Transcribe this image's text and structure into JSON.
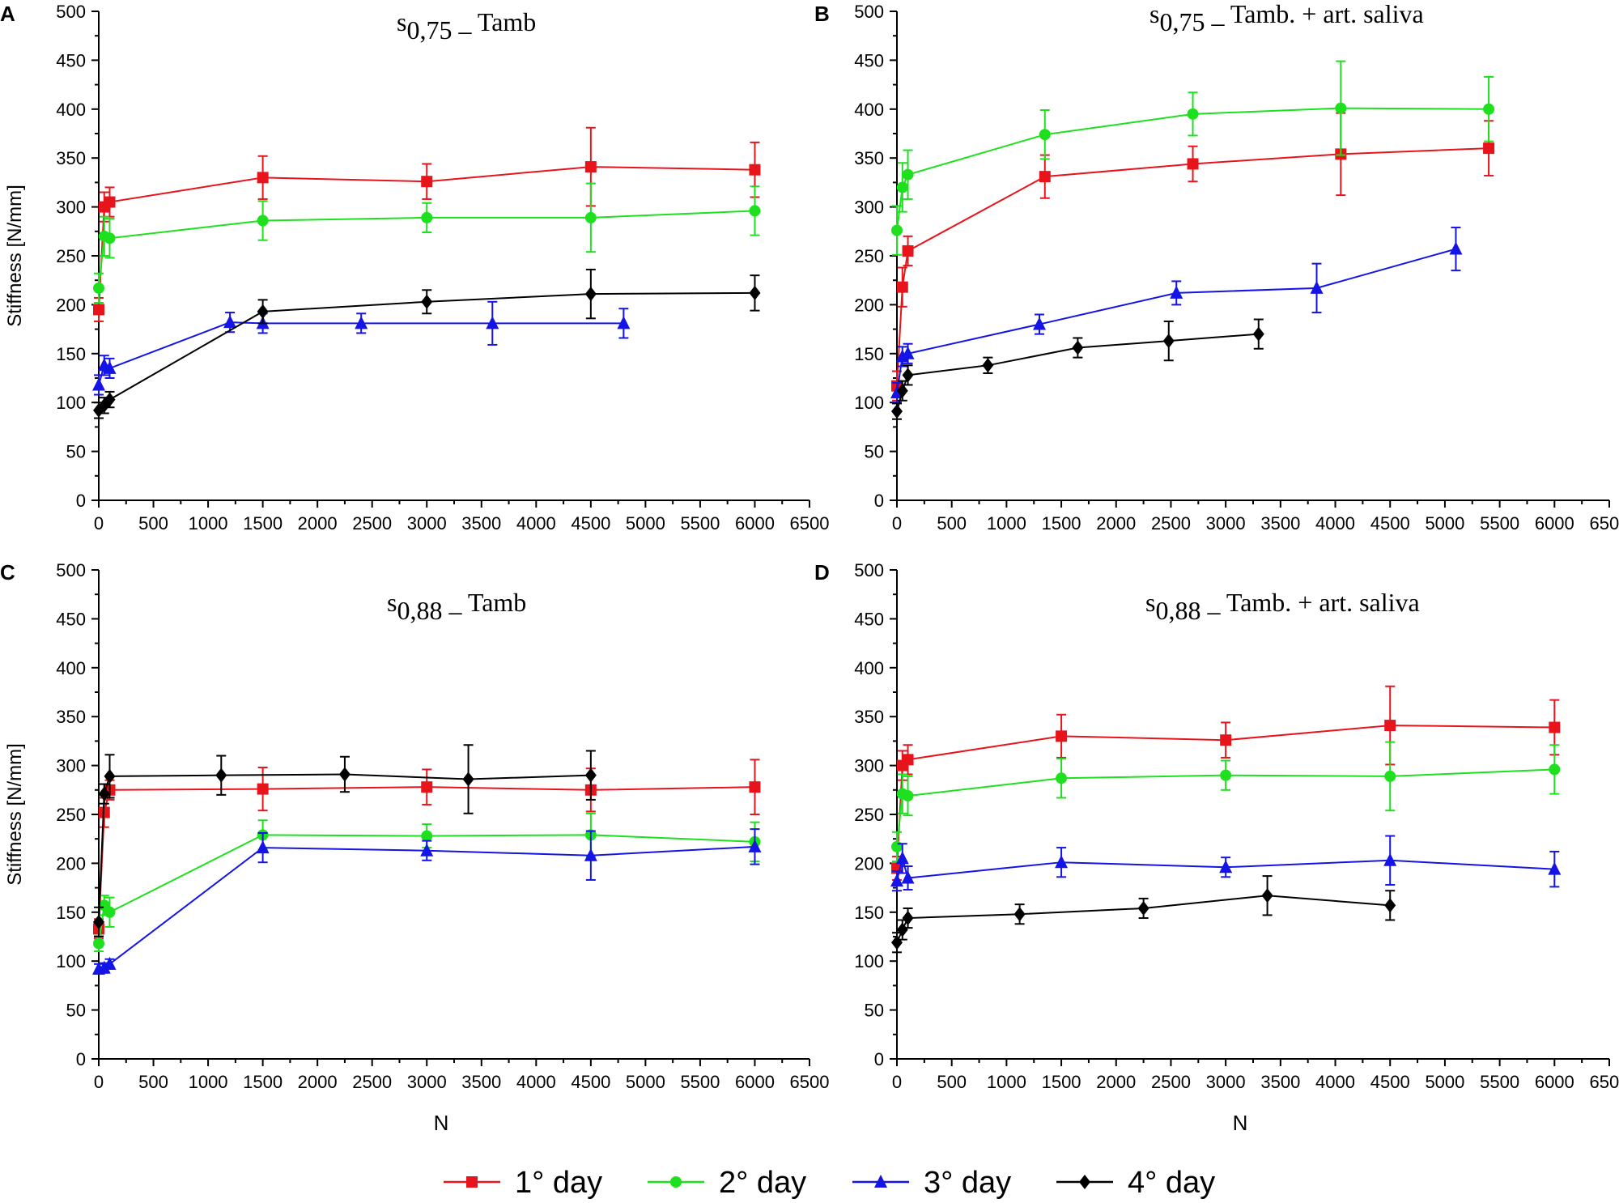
{
  "legend": {
    "entries": [
      {
        "key": "day1",
        "label": "1° day",
        "color": "#e8141c",
        "marker": "square"
      },
      {
        "key": "day2",
        "label": "2° day",
        "color": "#1ee01e",
        "marker": "circle"
      },
      {
        "key": "day3",
        "label": "3° day",
        "color": "#1414e6",
        "marker": "triangle"
      },
      {
        "key": "day4",
        "label": "4° day",
        "color": "#000000",
        "marker": "diamond"
      }
    ]
  },
  "chart_data": [
    {
      "type": "line",
      "panel": "A",
      "title": {
        "main": "s",
        "sub": "0,75",
        "rest": " _ Tamb"
      },
      "xlabel": "",
      "ylabel": "Stiffness [N/mm]",
      "xlim": [
        0,
        6500
      ],
      "ylim": [
        0,
        500
      ],
      "xticks": [
        0,
        500,
        1000,
        1500,
        2000,
        2500,
        3000,
        3500,
        4000,
        4500,
        5000,
        5500,
        6000,
        6500
      ],
      "yticks": [
        0,
        50,
        100,
        150,
        200,
        250,
        300,
        350,
        400,
        450,
        500
      ],
      "series": [
        {
          "name": "1° day",
          "x": [
            0,
            50,
            100,
            1500,
            3000,
            4500,
            6000
          ],
          "y": [
            195,
            300,
            305,
            330,
            326,
            341,
            338
          ],
          "err": [
            12,
            15,
            15,
            22,
            18,
            40,
            28
          ]
        },
        {
          "name": "2° day",
          "x": [
            0,
            50,
            100,
            1500,
            3000,
            4500,
            6000
          ],
          "y": [
            217,
            270,
            268,
            286,
            289,
            289,
            296
          ],
          "err": [
            15,
            20,
            20,
            20,
            15,
            35,
            25
          ]
        },
        {
          "name": "3° day",
          "x": [
            0,
            50,
            100,
            1200,
            1500,
            2400,
            3600,
            4800
          ],
          "y": [
            118,
            138,
            135,
            182,
            181,
            181,
            181,
            181
          ],
          "err": [
            10,
            10,
            10,
            10,
            10,
            10,
            22,
            15
          ]
        },
        {
          "name": "4° day",
          "x": [
            0,
            50,
            100,
            1500,
            3000,
            4500,
            6000
          ],
          "y": [
            92,
            97,
            103,
            193,
            203,
            211,
            212
          ],
          "err": [
            8,
            8,
            8,
            12,
            12,
            25,
            18
          ]
        }
      ]
    },
    {
      "type": "line",
      "panel": "B",
      "title": {
        "main": "s",
        "sub": "0,75",
        "rest": " _ Tamb. + art. saliva"
      },
      "xlabel": "",
      "ylabel": "",
      "xlim": [
        0,
        6500
      ],
      "ylim": [
        0,
        500
      ],
      "xticks": [
        0,
        500,
        1000,
        1500,
        2000,
        2500,
        3000,
        3500,
        4000,
        4500,
        5000,
        5500,
        6000,
        6500
      ],
      "yticks": [
        0,
        50,
        100,
        150,
        200,
        250,
        300,
        350,
        400,
        450,
        500
      ],
      "series": [
        {
          "name": "1° day",
          "x": [
            0,
            50,
            100,
            1350,
            2700,
            4050,
            5400
          ],
          "y": [
            117,
            218,
            255,
            331,
            344,
            354,
            360
          ],
          "err": [
            15,
            20,
            15,
            22,
            18,
            42,
            28
          ]
        },
        {
          "name": "2° day",
          "x": [
            0,
            50,
            100,
            1350,
            2700,
            4050,
            5400
          ],
          "y": [
            276,
            320,
            333,
            374,
            395,
            401,
            400
          ],
          "err": [
            25,
            25,
            25,
            25,
            22,
            48,
            33
          ]
        },
        {
          "name": "3° day",
          "x": [
            0,
            50,
            100,
            1300,
            2550,
            3830,
            5100
          ],
          "y": [
            110,
            147,
            150,
            180,
            212,
            217,
            257
          ],
          "err": [
            10,
            10,
            10,
            10,
            12,
            25,
            22
          ]
        },
        {
          "name": "4° day",
          "x": [
            0,
            50,
            100,
            830,
            1650,
            2480,
            3300
          ],
          "y": [
            91,
            112,
            128,
            138,
            156,
            163,
            170
          ],
          "err": [
            8,
            10,
            10,
            8,
            10,
            20,
            15
          ]
        }
      ]
    },
    {
      "type": "line",
      "panel": "C",
      "title": {
        "main": "s",
        "sub": "0,88",
        "rest": " _ Tamb"
      },
      "xlabel": "N",
      "ylabel": "Stiffness [N/mm]",
      "xlim": [
        0,
        6500
      ],
      "ylim": [
        0,
        500
      ],
      "xticks": [
        0,
        500,
        1000,
        1500,
        2000,
        2500,
        3000,
        3500,
        4000,
        4500,
        5000,
        5500,
        6000,
        6500
      ],
      "yticks": [
        0,
        50,
        100,
        150,
        200,
        250,
        300,
        350,
        400,
        450,
        500
      ],
      "series": [
        {
          "name": "1° day",
          "x": [
            0,
            50,
            100,
            1500,
            3000,
            4500,
            6000
          ],
          "y": [
            133,
            252,
            275,
            276,
            278,
            275,
            278
          ],
          "err": [
            10,
            15,
            10,
            22,
            18,
            22,
            28
          ]
        },
        {
          "name": "2° day",
          "x": [
            0,
            50,
            100,
            1500,
            3000,
            4500,
            6000
          ],
          "y": [
            118,
            157,
            150,
            229,
            228,
            229,
            222
          ],
          "err": [
            8,
            10,
            15,
            15,
            12,
            22,
            20
          ]
        },
        {
          "name": "3° day",
          "x": [
            0,
            50,
            100,
            1500,
            3000,
            4500,
            6000
          ],
          "y": [
            92,
            93,
            97,
            216,
            213,
            208,
            217
          ],
          "err": [
            5,
            5,
            5,
            15,
            10,
            25,
            18
          ]
        },
        {
          "name": "4° day",
          "x": [
            0,
            50,
            100,
            1120,
            2250,
            3380,
            4500
          ],
          "y": [
            140,
            271,
            289,
            290,
            291,
            286,
            290
          ],
          "err": [
            15,
            10,
            22,
            20,
            18,
            35,
            25
          ]
        }
      ]
    },
    {
      "type": "line",
      "panel": "D",
      "title": {
        "main": "s",
        "sub": "0,88",
        "rest": " _ Tamb. +  art. saliva"
      },
      "xlabel": "N",
      "ylabel": "",
      "xlim": [
        0,
        6500
      ],
      "ylim": [
        0,
        500
      ],
      "xticks": [
        0,
        500,
        1000,
        1500,
        2000,
        2500,
        3000,
        3500,
        4000,
        4500,
        5000,
        5500,
        6000,
        6500
      ],
      "yticks": [
        0,
        50,
        100,
        150,
        200,
        250,
        300,
        350,
        400,
        450,
        500
      ],
      "series": [
        {
          "name": "1° day",
          "x": [
            0,
            50,
            100,
            1500,
            3000,
            4500,
            6000
          ],
          "y": [
            195,
            300,
            306,
            330,
            326,
            341,
            339
          ],
          "err": [
            12,
            15,
            15,
            22,
            18,
            40,
            28
          ]
        },
        {
          "name": "2° day",
          "x": [
            0,
            50,
            100,
            1500,
            3000,
            4500,
            6000
          ],
          "y": [
            217,
            271,
            269,
            287,
            290,
            289,
            296
          ],
          "err": [
            15,
            20,
            20,
            20,
            15,
            35,
            25
          ]
        },
        {
          "name": "3° day",
          "x": [
            0,
            50,
            100,
            1500,
            3000,
            4500,
            6000
          ],
          "y": [
            182,
            205,
            185,
            201,
            196,
            203,
            194
          ],
          "err": [
            10,
            15,
            12,
            15,
            10,
            25,
            18
          ]
        },
        {
          "name": "4° day",
          "x": [
            0,
            50,
            100,
            1120,
            2250,
            3380,
            4500
          ],
          "y": [
            119,
            132,
            144,
            148,
            154,
            167,
            157
          ],
          "err": [
            10,
            10,
            10,
            10,
            10,
            20,
            15
          ]
        }
      ]
    }
  ]
}
